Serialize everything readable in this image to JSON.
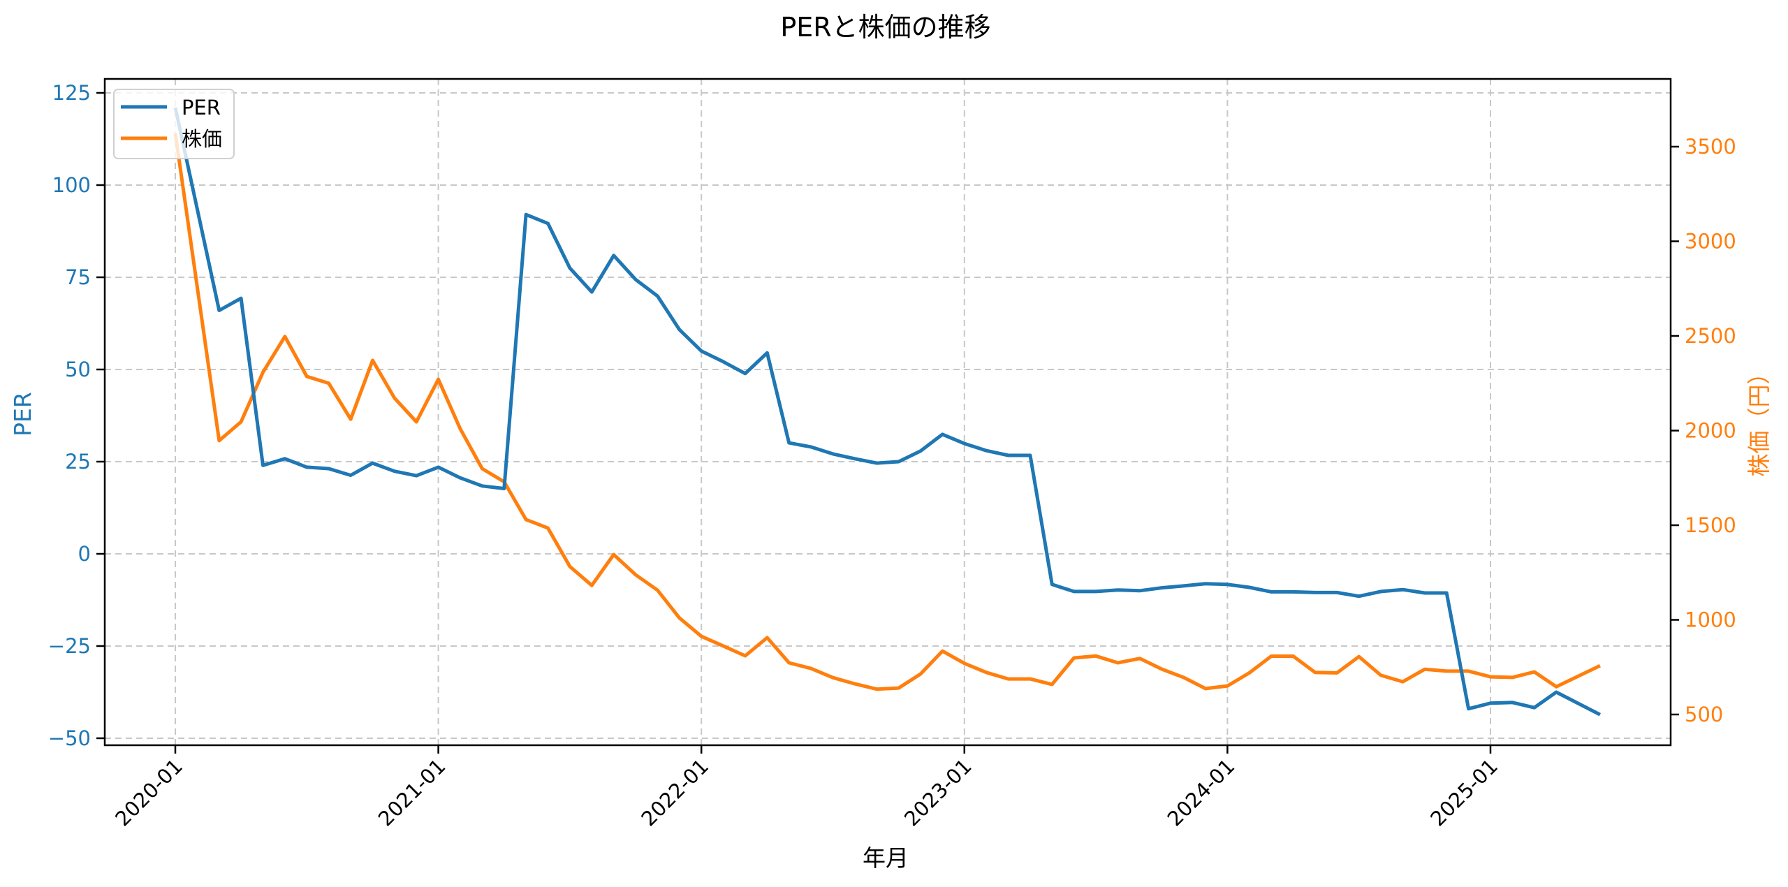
{
  "chart": {
    "title": "PERと株価の推移",
    "xlabel": "年月",
    "ylabel_left": "PER",
    "ylabel_right": "株価（円）",
    "colors": {
      "per": "#1f77b4",
      "price": "#ff7f0e",
      "grid": "#c8c8c8",
      "axis": "#000000"
    },
    "left_ticks": [
      "125",
      "100",
      "75",
      "50",
      "25",
      "0",
      "−25",
      "−50"
    ],
    "right_ticks": [
      "3500",
      "3000",
      "2500",
      "2000",
      "1500",
      "1000",
      "500"
    ],
    "x_ticks": [
      "2020-01",
      "2021-01",
      "2022-01",
      "2023-01",
      "2024-01",
      "2025-01"
    ],
    "legend": [
      {
        "label": "PER",
        "color": "#1f77b4"
      },
      {
        "label": "株価",
        "color": "#ff7f0e"
      }
    ]
  },
  "chart_data": {
    "type": "line",
    "title": "PERと株価の推移",
    "xlabel": "年月",
    "ylabel": "PER",
    "ylabel_right": "株価（円）",
    "grid": true,
    "legend_position": "upper left",
    "ylim": [
      -52,
      129
    ],
    "ylim_right": [
      345,
      3845
    ],
    "x_tick_labels": [
      "2020-01",
      "2021-01",
      "2022-01",
      "2023-01",
      "2024-01",
      "2025-01"
    ],
    "x": [
      "2020-01",
      "2020-03",
      "2020-04",
      "2020-05",
      "2020-06",
      "2020-07",
      "2020-08",
      "2020-09",
      "2020-10",
      "2020-11",
      "2020-12",
      "2021-01",
      "2021-02",
      "2021-03",
      "2021-04",
      "2021-05",
      "2021-06",
      "2021-07",
      "2021-08",
      "2021-09",
      "2021-10",
      "2021-11",
      "2021-12",
      "2022-01",
      "2022-02",
      "2022-03",
      "2022-04",
      "2022-05",
      "2022-06",
      "2022-07",
      "2022-08",
      "2022-09",
      "2022-10",
      "2022-11",
      "2022-12",
      "2023-01",
      "2023-02",
      "2023-03",
      "2023-04",
      "2023-05",
      "2023-06",
      "2023-07",
      "2023-08",
      "2023-09",
      "2023-10",
      "2023-11",
      "2023-12",
      "2024-01",
      "2024-02",
      "2024-03",
      "2024-04",
      "2024-05",
      "2024-06",
      "2024-07",
      "2024-08",
      "2024-09",
      "2024-10",
      "2024-11",
      "2024-12",
      "2025-01",
      "2025-02",
      "2025-03",
      "2025-04",
      "2025-06"
    ],
    "series": [
      {
        "name": "PER",
        "axis": "left",
        "color": "#1f77b4",
        "values": [
          121.0,
          66.0,
          69.3,
          24.0,
          25.8,
          23.5,
          23.1,
          21.3,
          24.6,
          22.4,
          21.2,
          23.5,
          20.6,
          18.4,
          17.7,
          92.0,
          89.6,
          77.5,
          71.0,
          80.9,
          74.4,
          69.9,
          60.8,
          55.0,
          52.1,
          48.9,
          54.5,
          30.1,
          29.0,
          27.1,
          25.8,
          24.6,
          25.0,
          27.9,
          32.4,
          29.9,
          28.0,
          26.7,
          26.7,
          -8.3,
          -10.2,
          -10.2,
          -9.8,
          -10.0,
          -9.2,
          -8.7,
          -8.1,
          -8.3,
          -9.1,
          -10.3,
          -10.3,
          -10.5,
          -10.5,
          -11.5,
          -10.2,
          -9.7,
          -10.6,
          -10.6,
          -42.0,
          -40.5,
          -40.3,
          -41.7,
          -37.5,
          -43.6
        ]
      },
      {
        "name": "株価",
        "axis": "right",
        "color": "#ff7f0e",
        "values": [
          3570,
          1947,
          2046,
          2308,
          2497,
          2286,
          2250,
          2060,
          2371,
          2172,
          2046,
          2271,
          2009,
          1799,
          1729,
          1530,
          1485,
          1282,
          1182,
          1345,
          1238,
          1157,
          1010,
          913,
          862,
          810,
          906,
          773,
          743,
          695,
          662,
          634,
          640,
          714,
          835,
          770,
          722,
          688,
          688,
          659,
          799,
          809,
          773,
          796,
          740,
          696,
          637,
          651,
          720,
          808,
          808,
          722,
          720,
          806,
          707,
          673,
          739,
          729,
          729,
          699,
          696,
          725,
          647,
          758
        ]
      }
    ]
  }
}
